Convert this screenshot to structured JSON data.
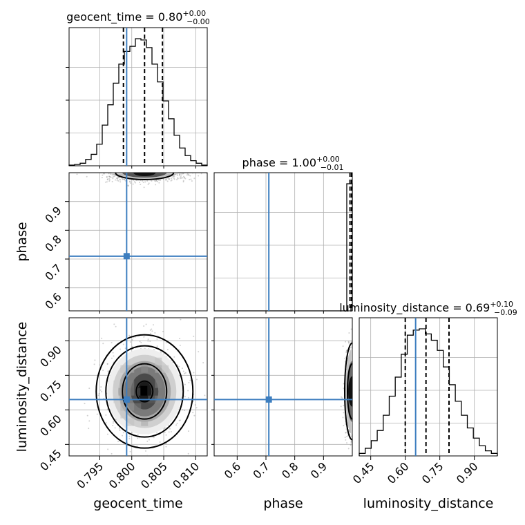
{
  "chart_data": {
    "type": "corner",
    "parameters": [
      "geocent_time",
      "phase",
      "luminosity_distance"
    ],
    "truths": {
      "geocent_time": 0.7992,
      "phase": 0.71,
      "luminosity_distance": 0.645
    },
    "titles": {
      "geocent_time": {
        "prefix": "geocent_time = 0.80",
        "plus": "+0.00",
        "minus": "−0.00"
      },
      "phase": {
        "prefix": "phase = 1.00",
        "plus": "+0.00",
        "minus": "−0.01"
      },
      "luminosity_distance": {
        "prefix": "luminosity_distance = 0.69",
        "plus": "+0.10",
        "minus": "−0.09"
      }
    },
    "axis_labels": {
      "x": [
        "geocent_time",
        "phase",
        "luminosity_distance"
      ],
      "y": [
        "phase",
        "luminosity_distance"
      ]
    },
    "ranges": {
      "geocent_time": [
        0.7902,
        0.8118
      ],
      "phase": [
        0.52,
        1.0
      ],
      "luminosity_distance": [
        0.4,
        1.0
      ]
    },
    "ticks": {
      "geocent_time": [
        "0.795",
        "0.800",
        "0.805",
        "0.810"
      ],
      "phase": [
        "0.6",
        "0.7",
        "0.8",
        "0.9"
      ],
      "luminosity_distance": [
        "0.45",
        "0.60",
        "0.75",
        "0.90"
      ]
    },
    "quantiles": {
      "geocent_time": [
        0.7987,
        0.802,
        0.8048
      ],
      "phase": [
        0.992,
        0.998,
        1.0
      ],
      "luminosity_distance": [
        0.6,
        0.69,
        0.79
      ]
    },
    "histograms": {
      "geocent_time": [
        0.5,
        1,
        2,
        5,
        9,
        17,
        32,
        48,
        65,
        80,
        90,
        94,
        100,
        99,
        93,
        80,
        66,
        51,
        37,
        24,
        14,
        8,
        4,
        2,
        0.5
      ],
      "phase": [
        0,
        0,
        0,
        0,
        0,
        0,
        0,
        0,
        0,
        0,
        0,
        0,
        0,
        0,
        0,
        0,
        0,
        0,
        0,
        0,
        0,
        0,
        0,
        0,
        100
      ],
      "luminosity_distance": [
        2,
        6,
        12,
        20,
        32,
        47,
        62,
        80,
        95,
        99,
        100,
        96,
        91,
        83,
        70,
        56,
        43,
        32,
        22,
        14,
        8,
        4,
        2
      ]
    },
    "grid": true
  }
}
